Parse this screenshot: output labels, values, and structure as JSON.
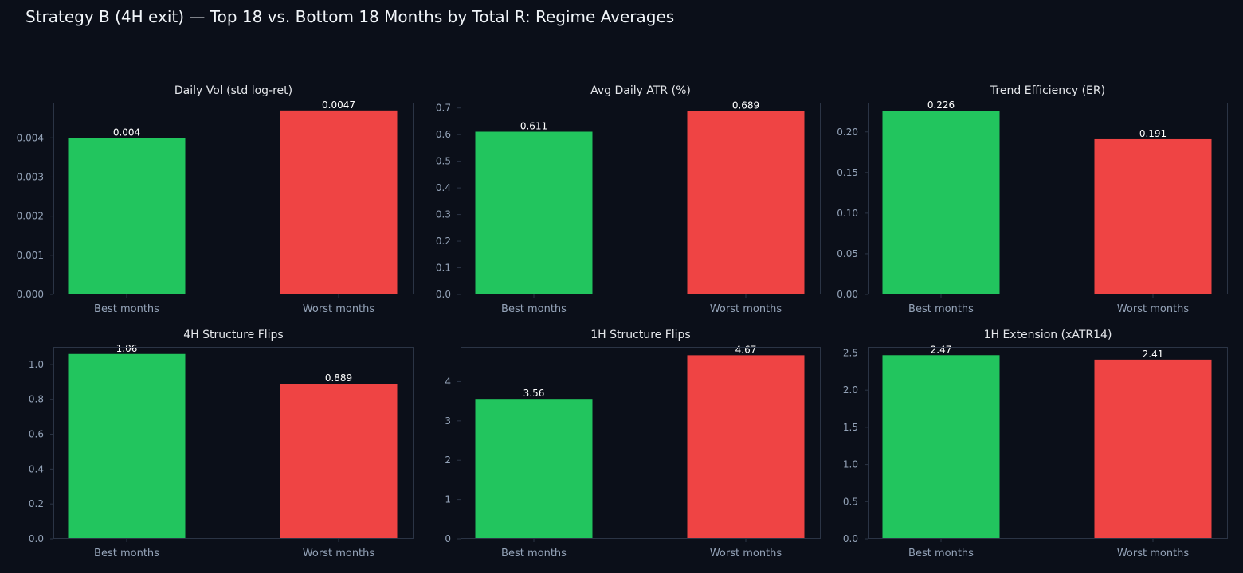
{
  "figure": {
    "title": "Strategy B (4H exit) — Top 18 vs. Bottom 18 Months by Total R: Regime Averages"
  },
  "colors": {
    "background": "#0b0f19",
    "best": "#22c55e",
    "worst": "#ef4444",
    "axis": "#2b3445",
    "tick_text": "#94a3b8",
    "title_text": "#e5e7eb"
  },
  "chart_data": [
    {
      "type": "bar",
      "title": "Daily Vol (std log-ret)",
      "categories": [
        "Best months",
        "Worst months"
      ],
      "values": [
        0.004,
        0.0047
      ],
      "value_labels": [
        "0.004",
        "0.0047"
      ],
      "ylim": [
        0,
        0.0049
      ],
      "yticks": [
        0,
        0.001,
        0.002,
        0.003,
        0.004
      ],
      "ytick_labels": [
        "0.000",
        "0.001",
        "0.002",
        "0.003",
        "0.004"
      ],
      "grid": false
    },
    {
      "type": "bar",
      "title": "Avg Daily ATR (%)",
      "categories": [
        "Best months",
        "Worst months"
      ],
      "values": [
        0.611,
        0.689
      ],
      "value_labels": [
        "0.611",
        "0.689"
      ],
      "ylim": [
        0,
        0.72
      ],
      "yticks": [
        0,
        0.1,
        0.2,
        0.3,
        0.4,
        0.5,
        0.6,
        0.7
      ],
      "ytick_labels": [
        "0.0",
        "0.1",
        "0.2",
        "0.3",
        "0.4",
        "0.5",
        "0.6",
        "0.7"
      ],
      "grid": false
    },
    {
      "type": "bar",
      "title": "Trend Efficiency (ER)",
      "categories": [
        "Best months",
        "Worst months"
      ],
      "values": [
        0.226,
        0.191
      ],
      "value_labels": [
        "0.226",
        "0.191"
      ],
      "ylim": [
        0,
        0.236
      ],
      "yticks": [
        0,
        0.05,
        0.1,
        0.15,
        0.2
      ],
      "ytick_labels": [
        "0.00",
        "0.05",
        "0.10",
        "0.15",
        "0.20"
      ],
      "grid": false
    },
    {
      "type": "bar",
      "title": "4H Structure Flips",
      "categories": [
        "Best months",
        "Worst months"
      ],
      "values": [
        1.06,
        0.889
      ],
      "value_labels": [
        "1.06",
        "0.889"
      ],
      "ylim": [
        0,
        1.1
      ],
      "yticks": [
        0,
        0.2,
        0.4,
        0.6,
        0.8,
        1.0
      ],
      "ytick_labels": [
        "0.0",
        "0.2",
        "0.4",
        "0.6",
        "0.8",
        "1.0"
      ],
      "grid": false
    },
    {
      "type": "bar",
      "title": "1H Structure Flips",
      "categories": [
        "Best months",
        "Worst months"
      ],
      "values": [
        3.56,
        4.67
      ],
      "value_labels": [
        "3.56",
        "4.67"
      ],
      "ylim": [
        0,
        4.88
      ],
      "yticks": [
        0,
        1,
        2,
        3,
        4
      ],
      "ytick_labels": [
        "0",
        "1",
        "2",
        "3",
        "4"
      ],
      "grid": false
    },
    {
      "type": "bar",
      "title": "1H Extension (xATR14)",
      "categories": [
        "Best months",
        "Worst months"
      ],
      "values": [
        2.47,
        2.41
      ],
      "value_labels": [
        "2.47",
        "2.41"
      ],
      "ylim": [
        0,
        2.58
      ],
      "yticks": [
        0,
        0.5,
        1.0,
        1.5,
        2.0,
        2.5
      ],
      "ytick_labels": [
        "0.0",
        "0.5",
        "1.0",
        "1.5",
        "2.0",
        "2.5"
      ],
      "grid": false
    }
  ]
}
